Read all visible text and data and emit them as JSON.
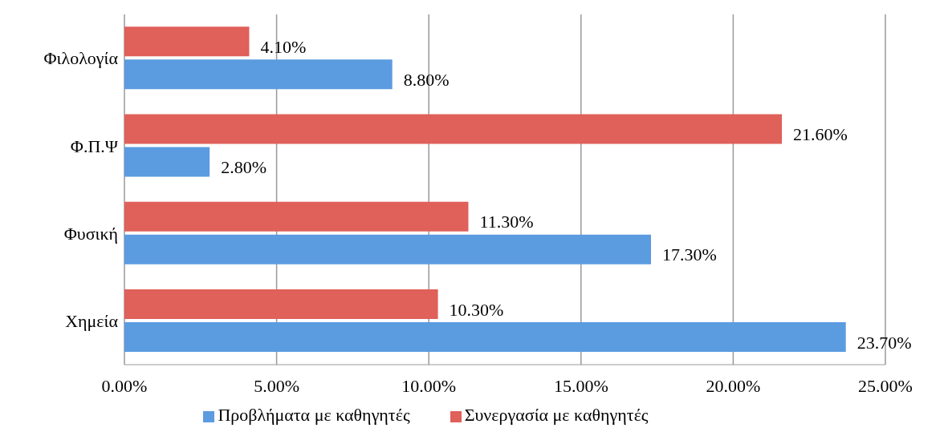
{
  "chart_data": {
    "type": "bar",
    "orientation": "horizontal",
    "categories": [
      "Φιλολογία",
      "Φ.Π.Ψ",
      "Φυσική",
      "Χημεία"
    ],
    "series": [
      {
        "name": "Συνεργασία με καθηγητές",
        "color": "#e0605a",
        "values": [
          4.1,
          21.6,
          11.3,
          10.3
        ],
        "value_labels": [
          "4.10%",
          "21.60%",
          "11.30%",
          "10.30%"
        ]
      },
      {
        "name": "Προβλήματα με καθηγητές",
        "color": "#5b9be0",
        "values": [
          8.8,
          2.8,
          17.3,
          23.7
        ],
        "value_labels": [
          "8.80%",
          "2.80%",
          "17.30%",
          "23.70%"
        ]
      }
    ],
    "xlim": [
      0,
      25
    ],
    "xticks": [
      {
        "value": 0,
        "label": "0.00%"
      },
      {
        "value": 5,
        "label": "5.00%"
      },
      {
        "value": 10,
        "label": "10.00%"
      },
      {
        "value": 15,
        "label": "15.00%"
      },
      {
        "value": 20,
        "label": "20.00%"
      },
      {
        "value": 25,
        "label": "25.00%"
      }
    ],
    "grid": "x",
    "legend": "bottom"
  }
}
